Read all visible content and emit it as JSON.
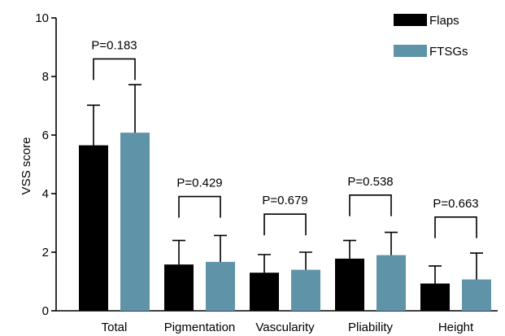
{
  "chart_data": {
    "type": "bar",
    "ylabel": "VSS score",
    "xlabel": "",
    "ylim": [
      0,
      10
    ],
    "yticks": [
      0,
      2,
      4,
      6,
      8,
      10
    ],
    "categories": [
      "Total",
      "Pigmentation",
      "Vascularity",
      "Pliability",
      "Height"
    ],
    "series": [
      {
        "name": "Flaps",
        "color": "#000000",
        "values": [
          5.65,
          1.58,
          1.3,
          1.78,
          0.93
        ],
        "error_upper": [
          7.02,
          2.4,
          1.92,
          2.4,
          1.53
        ]
      },
      {
        "name": "FTSGs",
        "color": "#5e93a8",
        "values": [
          6.08,
          1.67,
          1.4,
          1.9,
          1.07
        ],
        "error_upper": [
          7.72,
          2.57,
          2.0,
          2.68,
          1.97
        ]
      }
    ],
    "annotations": [
      {
        "category": "Total",
        "text": "P=0.183",
        "bracket_y": 8.6
      },
      {
        "category": "Pigmentation",
        "text": "P=0.429",
        "bracket_y": 3.9
      },
      {
        "category": "Vascularity",
        "text": "P=0.679",
        "bracket_y": 3.3
      },
      {
        "category": "Pliability",
        "text": "P=0.538",
        "bracket_y": 3.95
      },
      {
        "category": "Height",
        "text": "P=0.663",
        "bracket_y": 3.2
      }
    ],
    "legend": {
      "position": "top-right"
    },
    "grid": false
  }
}
